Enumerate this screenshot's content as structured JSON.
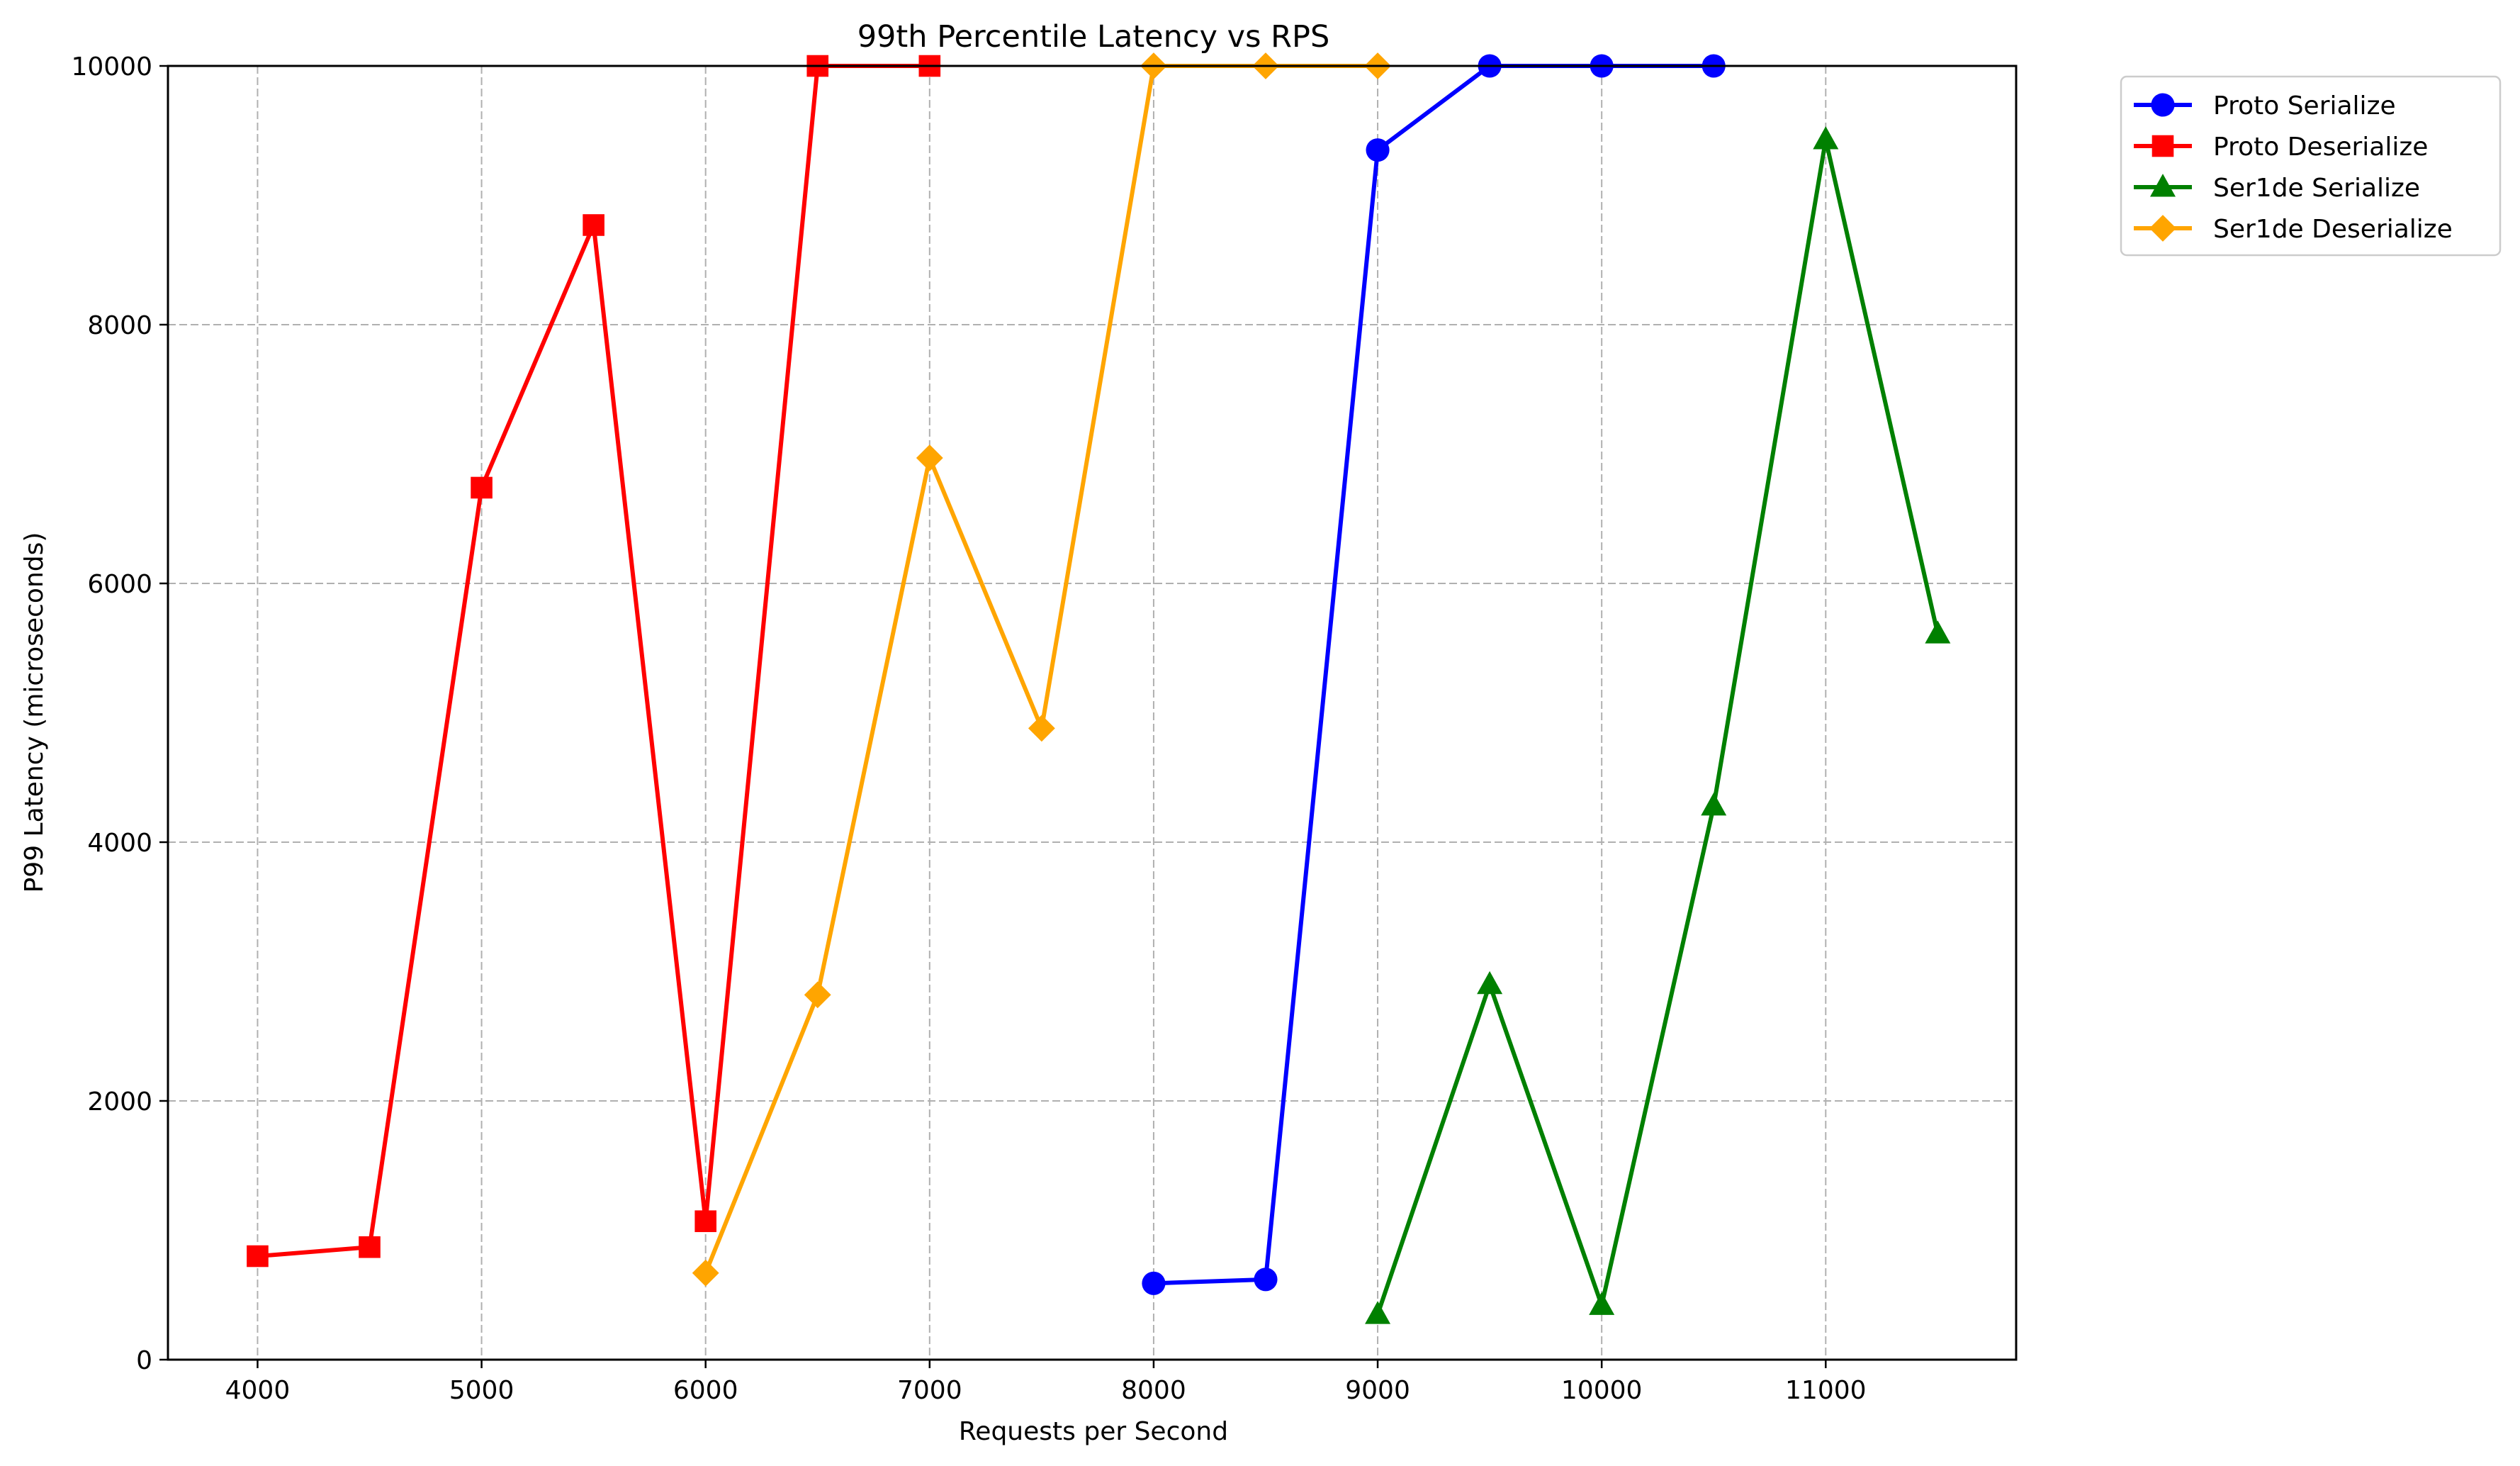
{
  "chart_data": {
    "type": "line",
    "title": "99th Percentile Latency vs RPS",
    "xlabel": "Requests per Second",
    "ylabel": "P99 Latency (microseconds)",
    "xlim": [
      3600,
      11850
    ],
    "ylim": [
      0,
      10000
    ],
    "xticks": [
      4000,
      5000,
      6000,
      7000,
      8000,
      9000,
      10000,
      11000
    ],
    "yticks": [
      0,
      2000,
      4000,
      6000,
      8000,
      10000
    ],
    "grid": true,
    "legend_position": "outside-top-right",
    "series": [
      {
        "name": "Proto Serialize",
        "color": "#0000ff",
        "marker": "circle",
        "points": [
          [
            8000,
            590
          ],
          [
            8500,
            620
          ],
          [
            9000,
            9350
          ],
          [
            9500,
            10000
          ],
          [
            10000,
            10000
          ],
          [
            10500,
            10000
          ]
        ]
      },
      {
        "name": "Proto Deserialize",
        "color": "#ff0000",
        "marker": "square",
        "points": [
          [
            4000,
            800
          ],
          [
            4500,
            870
          ],
          [
            5000,
            6740
          ],
          [
            5500,
            8770
          ],
          [
            6000,
            1070
          ],
          [
            6500,
            10000
          ],
          [
            7000,
            10000
          ]
        ]
      },
      {
        "name": "Ser1de Serialize",
        "color": "#008000",
        "marker": "triangle",
        "points": [
          [
            9000,
            350
          ],
          [
            9500,
            2900
          ],
          [
            10000,
            420
          ],
          [
            10500,
            4280
          ],
          [
            11000,
            9430
          ],
          [
            11500,
            5610
          ]
        ]
      },
      {
        "name": "Ser1de Deserialize",
        "color": "#ffa500",
        "marker": "diamond",
        "points": [
          [
            6000,
            670
          ],
          [
            6500,
            2820
          ],
          [
            7000,
            6970
          ],
          [
            7500,
            4880
          ],
          [
            8000,
            10000
          ],
          [
            8500,
            10000
          ],
          [
            9000,
            10000
          ]
        ]
      }
    ]
  }
}
